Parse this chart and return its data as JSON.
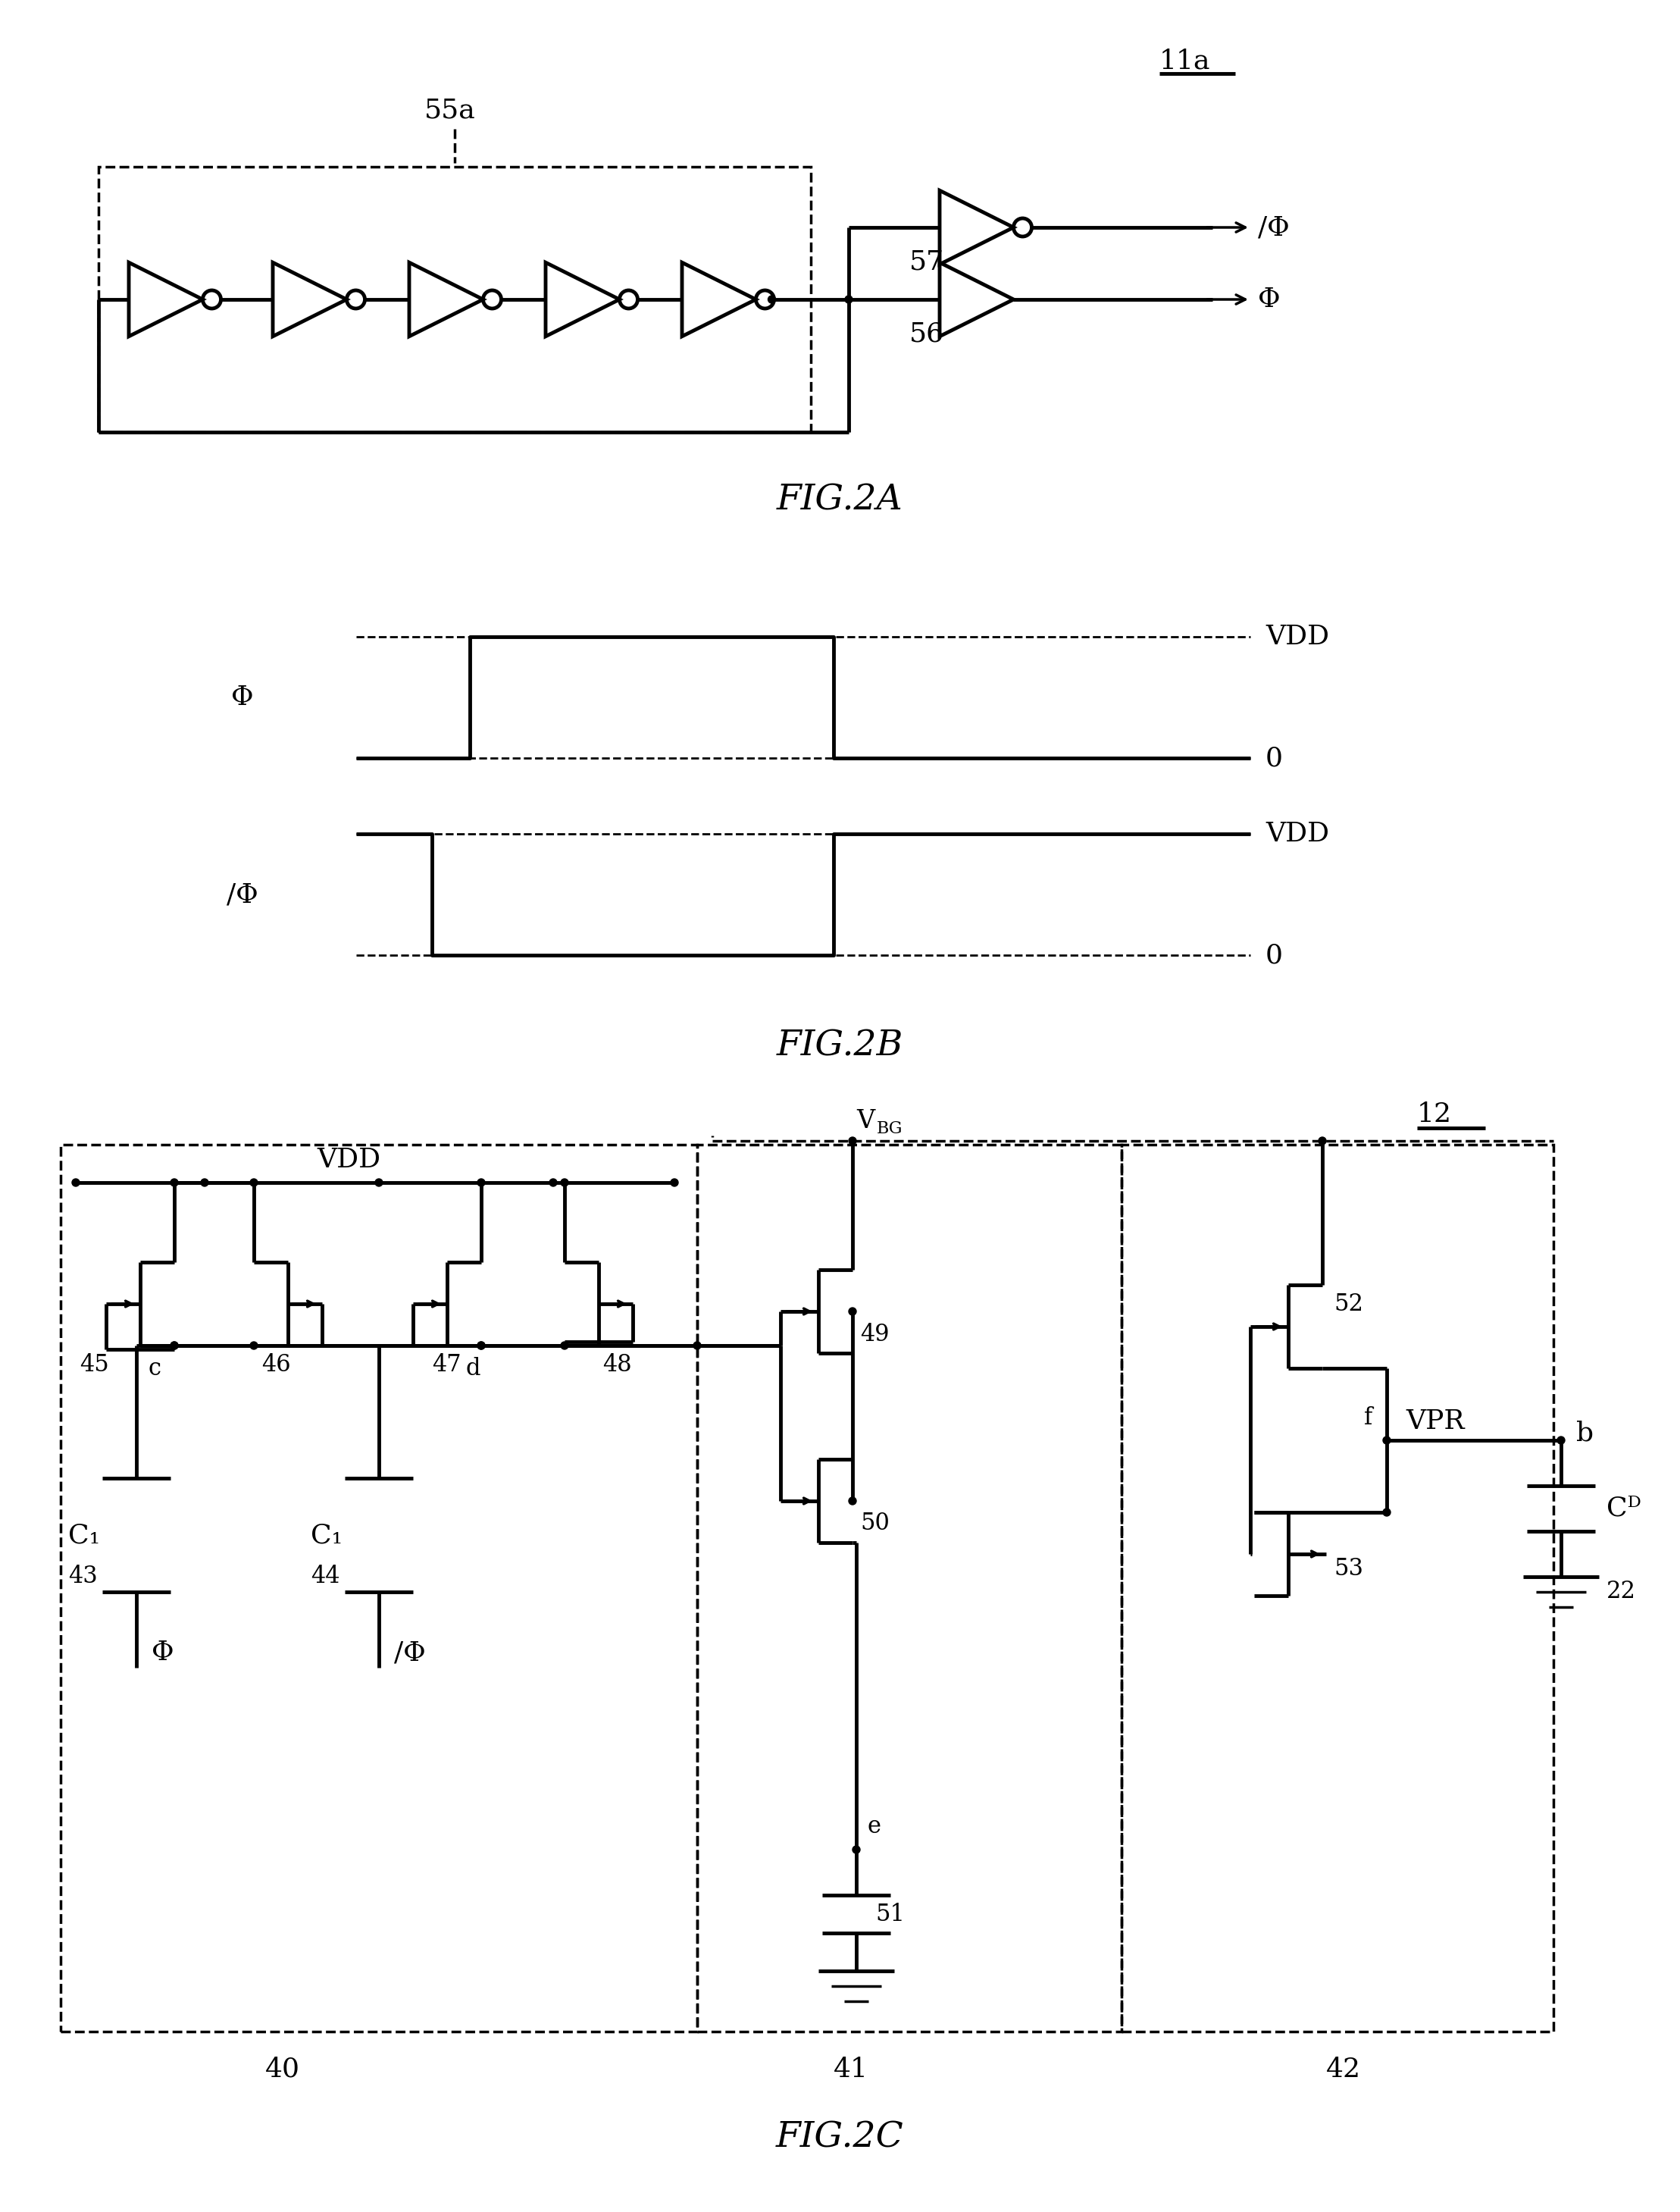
{
  "fig_width": 22.17,
  "fig_height": 29.18,
  "bg_color": "#ffffff",
  "label_11a": "11a",
  "label_55a": "55a",
  "label_56": "56",
  "label_57": "57",
  "label_phi": "Φ",
  "label_nphi": "/Φ",
  "label_VDD": "VDD",
  "label_0": "0",
  "label_12": "12",
  "label_40": "40",
  "label_41": "41",
  "label_42": "42",
  "label_43": "43",
  "label_44": "44",
  "label_45": "45",
  "label_46": "46",
  "label_47": "47",
  "label_48": "48",
  "label_49": "49",
  "label_50": "50",
  "label_51": "51",
  "label_52": "52",
  "label_53": "53",
  "label_VPR": "VPR",
  "label_b": "b",
  "label_c": "c",
  "label_d": "d",
  "label_e": "e",
  "label_f": "f",
  "label_22": "22",
  "fig2a": "FIG.2A",
  "fig2b": "FIG.2B",
  "fig2c": "FIG.2C"
}
